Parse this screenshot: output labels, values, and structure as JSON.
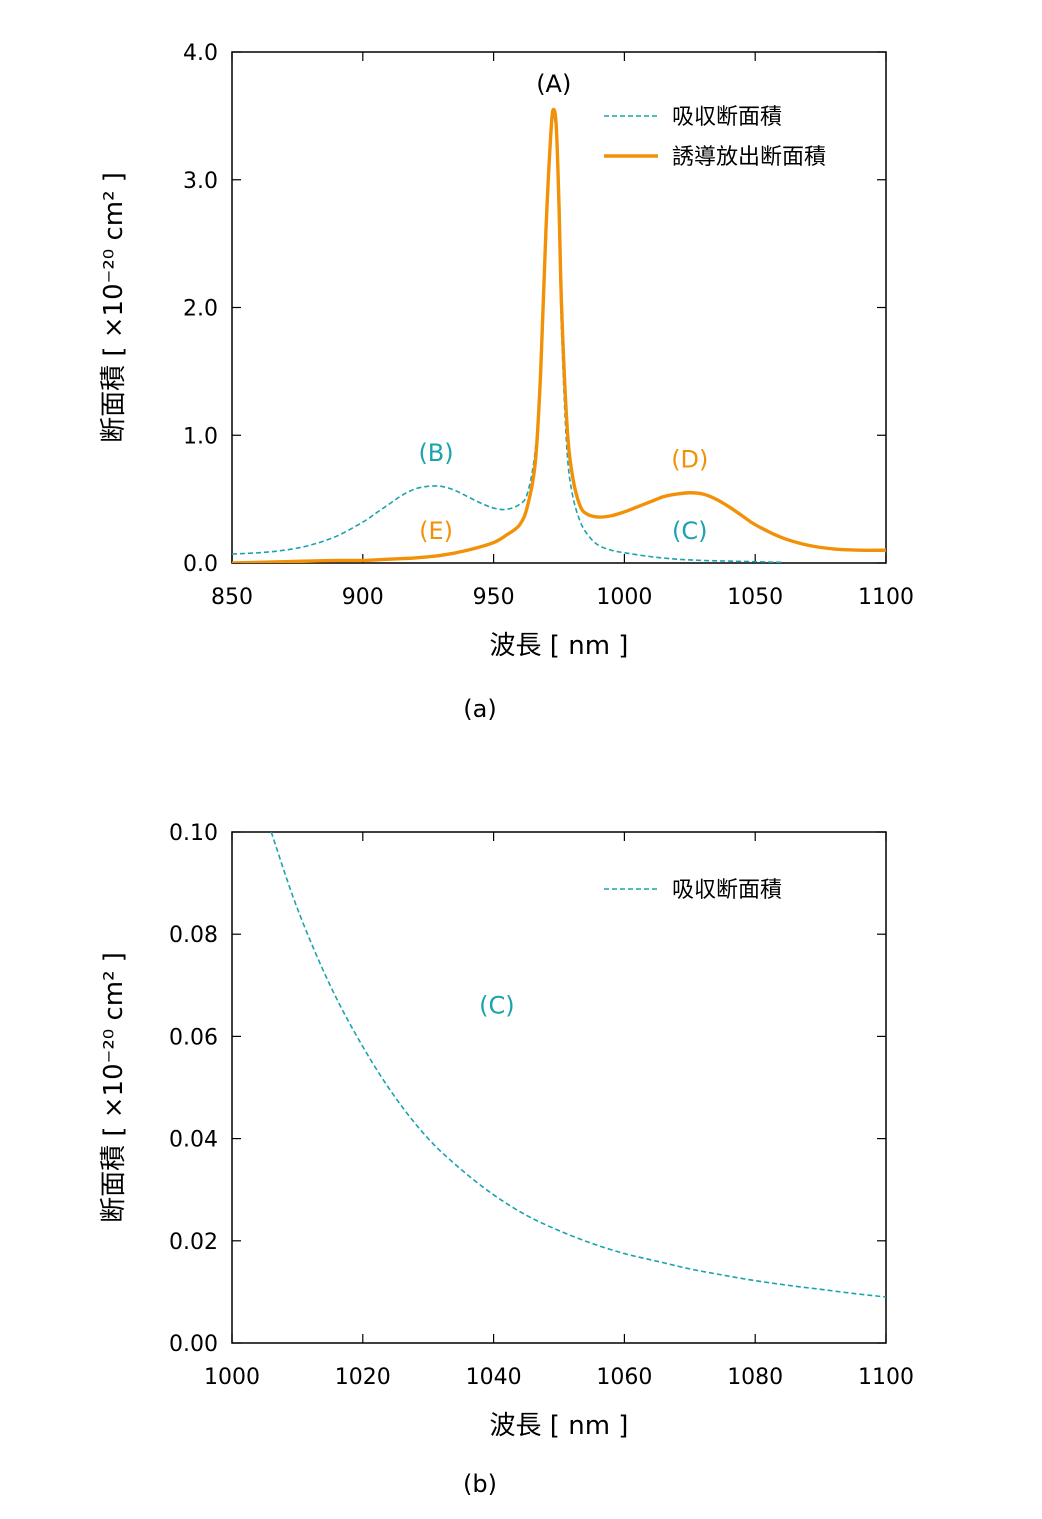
{
  "chart_data": [
    {
      "type": "line",
      "caption": "(a)",
      "xlabel": "波長 [ nm ]",
      "ylabel": "断面積 [ ×10⁻²⁰ cm² ]",
      "xlim": [
        850,
        1100
      ],
      "ylim": [
        0,
        4
      ],
      "xticks": [
        "850",
        "900",
        "950",
        "1000",
        "1050",
        "1100"
      ],
      "yticks": [
        "0.0",
        "1.0",
        "2.0",
        "3.0",
        "4.0"
      ],
      "legend_position": "top-right",
      "series": [
        {
          "name": "吸収断面積",
          "color": "#1aa3ad",
          "style": "dashed",
          "x": [
            850,
            860,
            870,
            880,
            890,
            900,
            905,
            910,
            915,
            920,
            925,
            930,
            935,
            940,
            945,
            950,
            955,
            960,
            963,
            966,
            968,
            970,
            972,
            973,
            974,
            975,
            976,
            978,
            980,
            983,
            986,
            990,
            995,
            1000,
            1010,
            1020,
            1030,
            1040,
            1050,
            1060
          ],
          "y": [
            0.07,
            0.08,
            0.1,
            0.14,
            0.21,
            0.32,
            0.39,
            0.46,
            0.53,
            0.58,
            0.6,
            0.6,
            0.57,
            0.52,
            0.47,
            0.43,
            0.42,
            0.46,
            0.55,
            0.9,
            1.6,
            2.6,
            3.35,
            3.5,
            3.3,
            2.6,
            1.8,
            0.9,
            0.55,
            0.33,
            0.22,
            0.14,
            0.1,
            0.08,
            0.05,
            0.03,
            0.02,
            0.015,
            0.01,
            0.005
          ]
        },
        {
          "name": "誘導放出断面積",
          "color": "#f29107",
          "style": "solid",
          "x": [
            850,
            870,
            890,
            900,
            910,
            920,
            930,
            940,
            950,
            955,
            960,
            963,
            966,
            968,
            970,
            972,
            973,
            974,
            975,
            976,
            978,
            980,
            983,
            986,
            990,
            995,
            1000,
            1005,
            1010,
            1015,
            1020,
            1025,
            1030,
            1035,
            1040,
            1045,
            1050,
            1060,
            1070,
            1080,
            1090,
            1100
          ],
          "y": [
            0,
            0.01,
            0.02,
            0.02,
            0.03,
            0.04,
            0.06,
            0.1,
            0.16,
            0.22,
            0.3,
            0.45,
            0.8,
            1.5,
            2.6,
            3.4,
            3.55,
            3.4,
            2.8,
            2.0,
            1.1,
            0.7,
            0.45,
            0.38,
            0.36,
            0.37,
            0.4,
            0.44,
            0.48,
            0.52,
            0.54,
            0.55,
            0.54,
            0.5,
            0.44,
            0.37,
            0.3,
            0.2,
            0.14,
            0.11,
            0.1,
            0.1
          ]
        }
      ],
      "annotations": [
        {
          "label": "(A)",
          "x": 973,
          "y": 3.75,
          "color": "#000000"
        },
        {
          "label": "(B)",
          "x": 928,
          "y": 0.86,
          "color": "#1aa3ad"
        },
        {
          "label": "(C)",
          "x": 1025,
          "y": 0.25,
          "color": "#1aa3ad"
        },
        {
          "label": "(D)",
          "x": 1025,
          "y": 0.81,
          "color": "#f29107"
        },
        {
          "label": "(E)",
          "x": 928,
          "y": 0.25,
          "color": "#f29107"
        }
      ]
    },
    {
      "type": "line",
      "caption": "(b)",
      "xlabel": "波長 [ nm ]",
      "ylabel": "断面積 [ ×10⁻²⁰ cm² ]",
      "xlim": [
        1000,
        1100
      ],
      "ylim": [
        0,
        0.1
      ],
      "xticks": [
        "1000",
        "1020",
        "1040",
        "1060",
        "1080",
        "1100"
      ],
      "yticks": [
        "0.00",
        "0.02",
        "0.04",
        "0.06",
        "0.08",
        "0.10"
      ],
      "legend_position": "top-right",
      "series": [
        {
          "name": "吸収断面積",
          "color": "#1aa3ad",
          "style": "dashed",
          "x": [
            1006,
            1010,
            1015,
            1020,
            1025,
            1030,
            1035,
            1040,
            1045,
            1050,
            1055,
            1060,
            1065,
            1070,
            1075,
            1080,
            1085,
            1090,
            1095,
            1100
          ],
          "y": [
            0.1,
            0.085,
            0.07,
            0.058,
            0.048,
            0.04,
            0.034,
            0.029,
            0.025,
            0.022,
            0.0195,
            0.0175,
            0.016,
            0.0145,
            0.0133,
            0.0122,
            0.0113,
            0.0105,
            0.0097,
            0.009
          ]
        }
      ],
      "annotations": [
        {
          "label": "(C)",
          "x": 1040.5,
          "y": 0.066,
          "color": "#1aa3ad"
        }
      ]
    }
  ]
}
